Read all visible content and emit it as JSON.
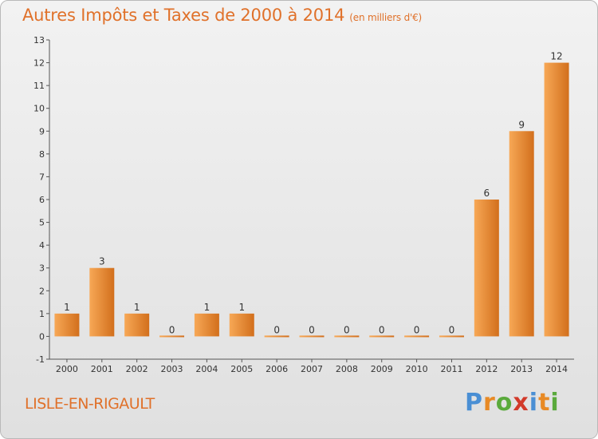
{
  "header": {
    "title": "Autres Impôts et Taxes de 2000 à 2014",
    "unit": "(en milliers d'€)"
  },
  "footer": {
    "commune": "LISLE-EN-RIGAULT",
    "brand_letters": [
      "P",
      "r",
      "o",
      "x",
      "i",
      "t",
      "i"
    ]
  },
  "colors": {
    "title": "#e0712a",
    "bar_light": "#f7a856",
    "bar_dark": "#d26f1c",
    "brand": [
      "#4a8fd4",
      "#e88a25",
      "#5aaa3c",
      "#d23a2a",
      "#4a8fd4",
      "#e88a25",
      "#5aaa3c"
    ]
  },
  "chart_data": {
    "type": "bar",
    "categories": [
      "2000",
      "2001",
      "2002",
      "2003",
      "2004",
      "2005",
      "2006",
      "2007",
      "2008",
      "2009",
      "2010",
      "2011",
      "2012",
      "2013",
      "2014"
    ],
    "values": [
      1,
      3,
      1,
      0,
      1,
      1,
      0,
      0,
      0,
      0,
      0,
      0,
      6,
      9,
      12
    ],
    "value_labels": [
      "1",
      "3",
      "1",
      "0",
      "1",
      "1",
      "0",
      "0",
      "0",
      "0",
      "0",
      "0",
      "6",
      "9",
      "12"
    ],
    "ylim": [
      -1,
      13
    ],
    "yticks": [
      -1,
      0,
      1,
      2,
      3,
      4,
      5,
      6,
      7,
      8,
      9,
      10,
      11,
      12,
      13
    ],
    "title": "Autres Impôts et Taxes de 2000 à 2014",
    "grid": false,
    "legend": "none"
  }
}
